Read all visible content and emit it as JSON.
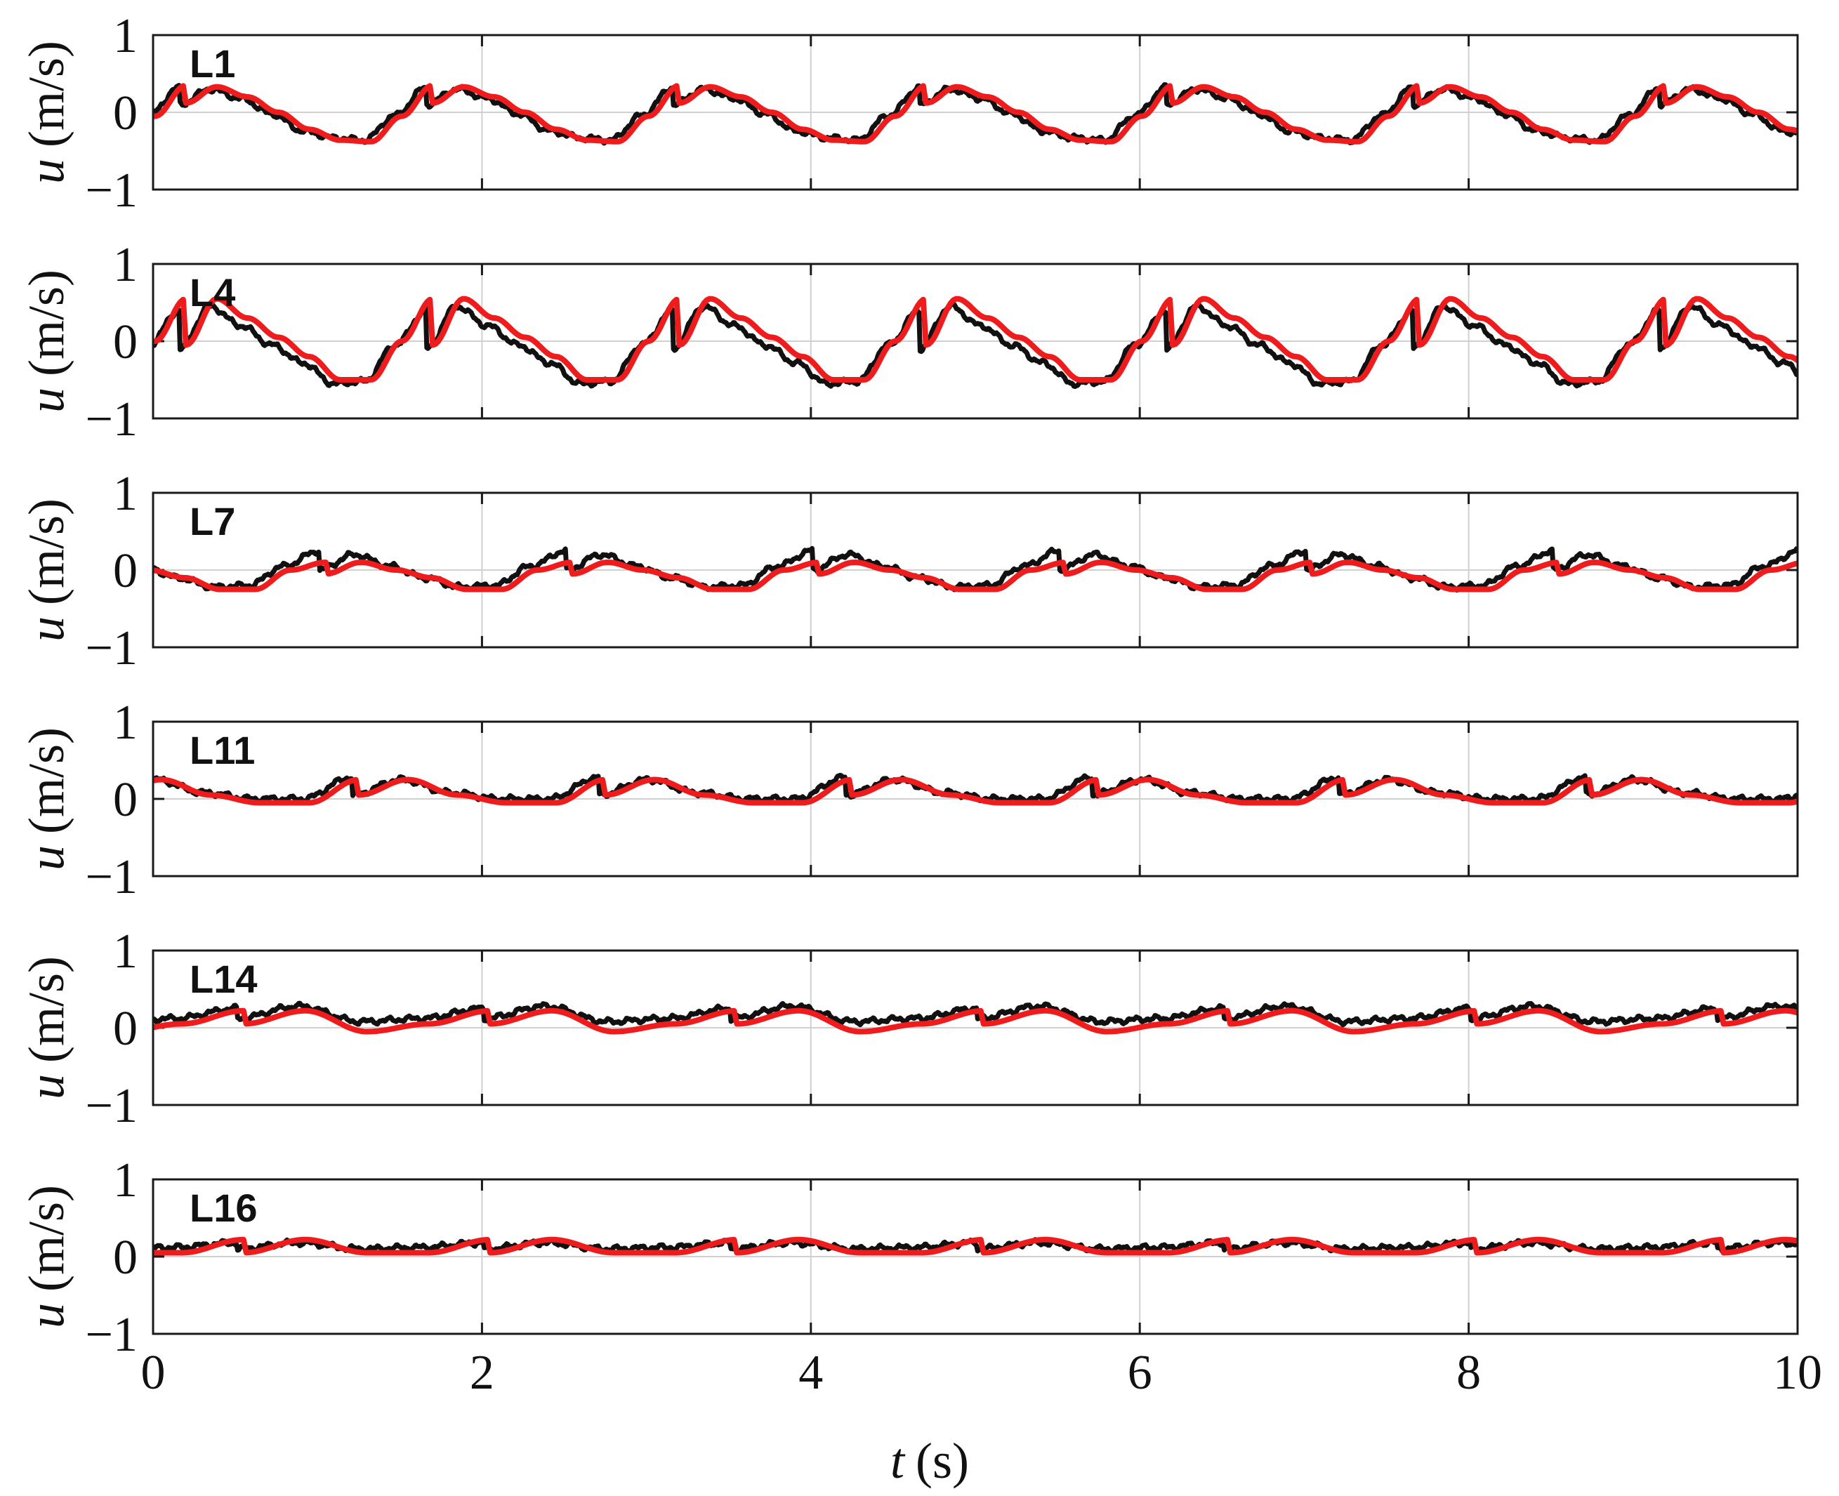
{
  "chart_data": {
    "type": "line",
    "layout": "stacked-panels",
    "xlabel_var": "t",
    "xlabel_unit": "(s)",
    "ylabel_var": "u",
    "ylabel_unit": "(m/s)",
    "xlim": [
      0,
      10
    ],
    "xticks": [
      0,
      2,
      4,
      6,
      8,
      10
    ],
    "ylim": [
      -1,
      1
    ],
    "yticks": [
      1,
      0,
      -1
    ],
    "ytick_labels": [
      "1",
      "0",
      "−1"
    ],
    "grid": true,
    "colors": {
      "measured": "#111111",
      "model": "#ee1c1c"
    },
    "period": 1.5,
    "panels": [
      {
        "label": "L1",
        "phase": 0.2,
        "model_y": [
          0.12,
          0.33,
          0.2,
          0.0,
          -0.22,
          -0.36,
          -0.38,
          -0.05,
          0.35
        ],
        "measured_y": [
          0.1,
          0.3,
          0.18,
          -0.02,
          -0.24,
          -0.33,
          -0.36,
          -0.04,
          0.32
        ]
      },
      {
        "label": "L4",
        "phase": 0.2,
        "model_y": [
          -0.05,
          0.55,
          0.3,
          0.05,
          -0.2,
          -0.5,
          -0.5,
          0.0,
          0.55
        ],
        "measured_y": [
          -0.1,
          0.45,
          0.2,
          -0.05,
          -0.28,
          -0.55,
          -0.52,
          -0.05,
          0.4
        ]
      },
      {
        "label": "L7",
        "phase": 1.05,
        "model_y": [
          -0.05,
          0.1,
          0.0,
          -0.1,
          -0.25,
          -0.25,
          0.0,
          0.1
        ],
        "measured_y": [
          0.0,
          0.2,
          0.05,
          -0.1,
          -0.22,
          -0.2,
          0.05,
          0.25
        ]
      },
      {
        "label": "L11",
        "phase": 1.25,
        "model_y": [
          0.05,
          0.25,
          0.05,
          -0.05,
          -0.05,
          0.25
        ],
        "measured_y": [
          0.05,
          0.25,
          0.08,
          0.0,
          0.0,
          0.28
        ]
      },
      {
        "label": "L14",
        "phase": 0.55,
        "model_y": [
          0.05,
          0.22,
          -0.05,
          0.05,
          0.22
        ],
        "measured_y": [
          0.12,
          0.28,
          0.08,
          0.12,
          0.25
        ]
      },
      {
        "label": "L16",
        "phase": 0.55,
        "model_y": [
          0.05,
          0.22,
          0.05,
          0.05,
          0.22
        ],
        "measured_y": [
          0.1,
          0.18,
          0.1,
          0.12,
          0.18
        ]
      }
    ]
  }
}
